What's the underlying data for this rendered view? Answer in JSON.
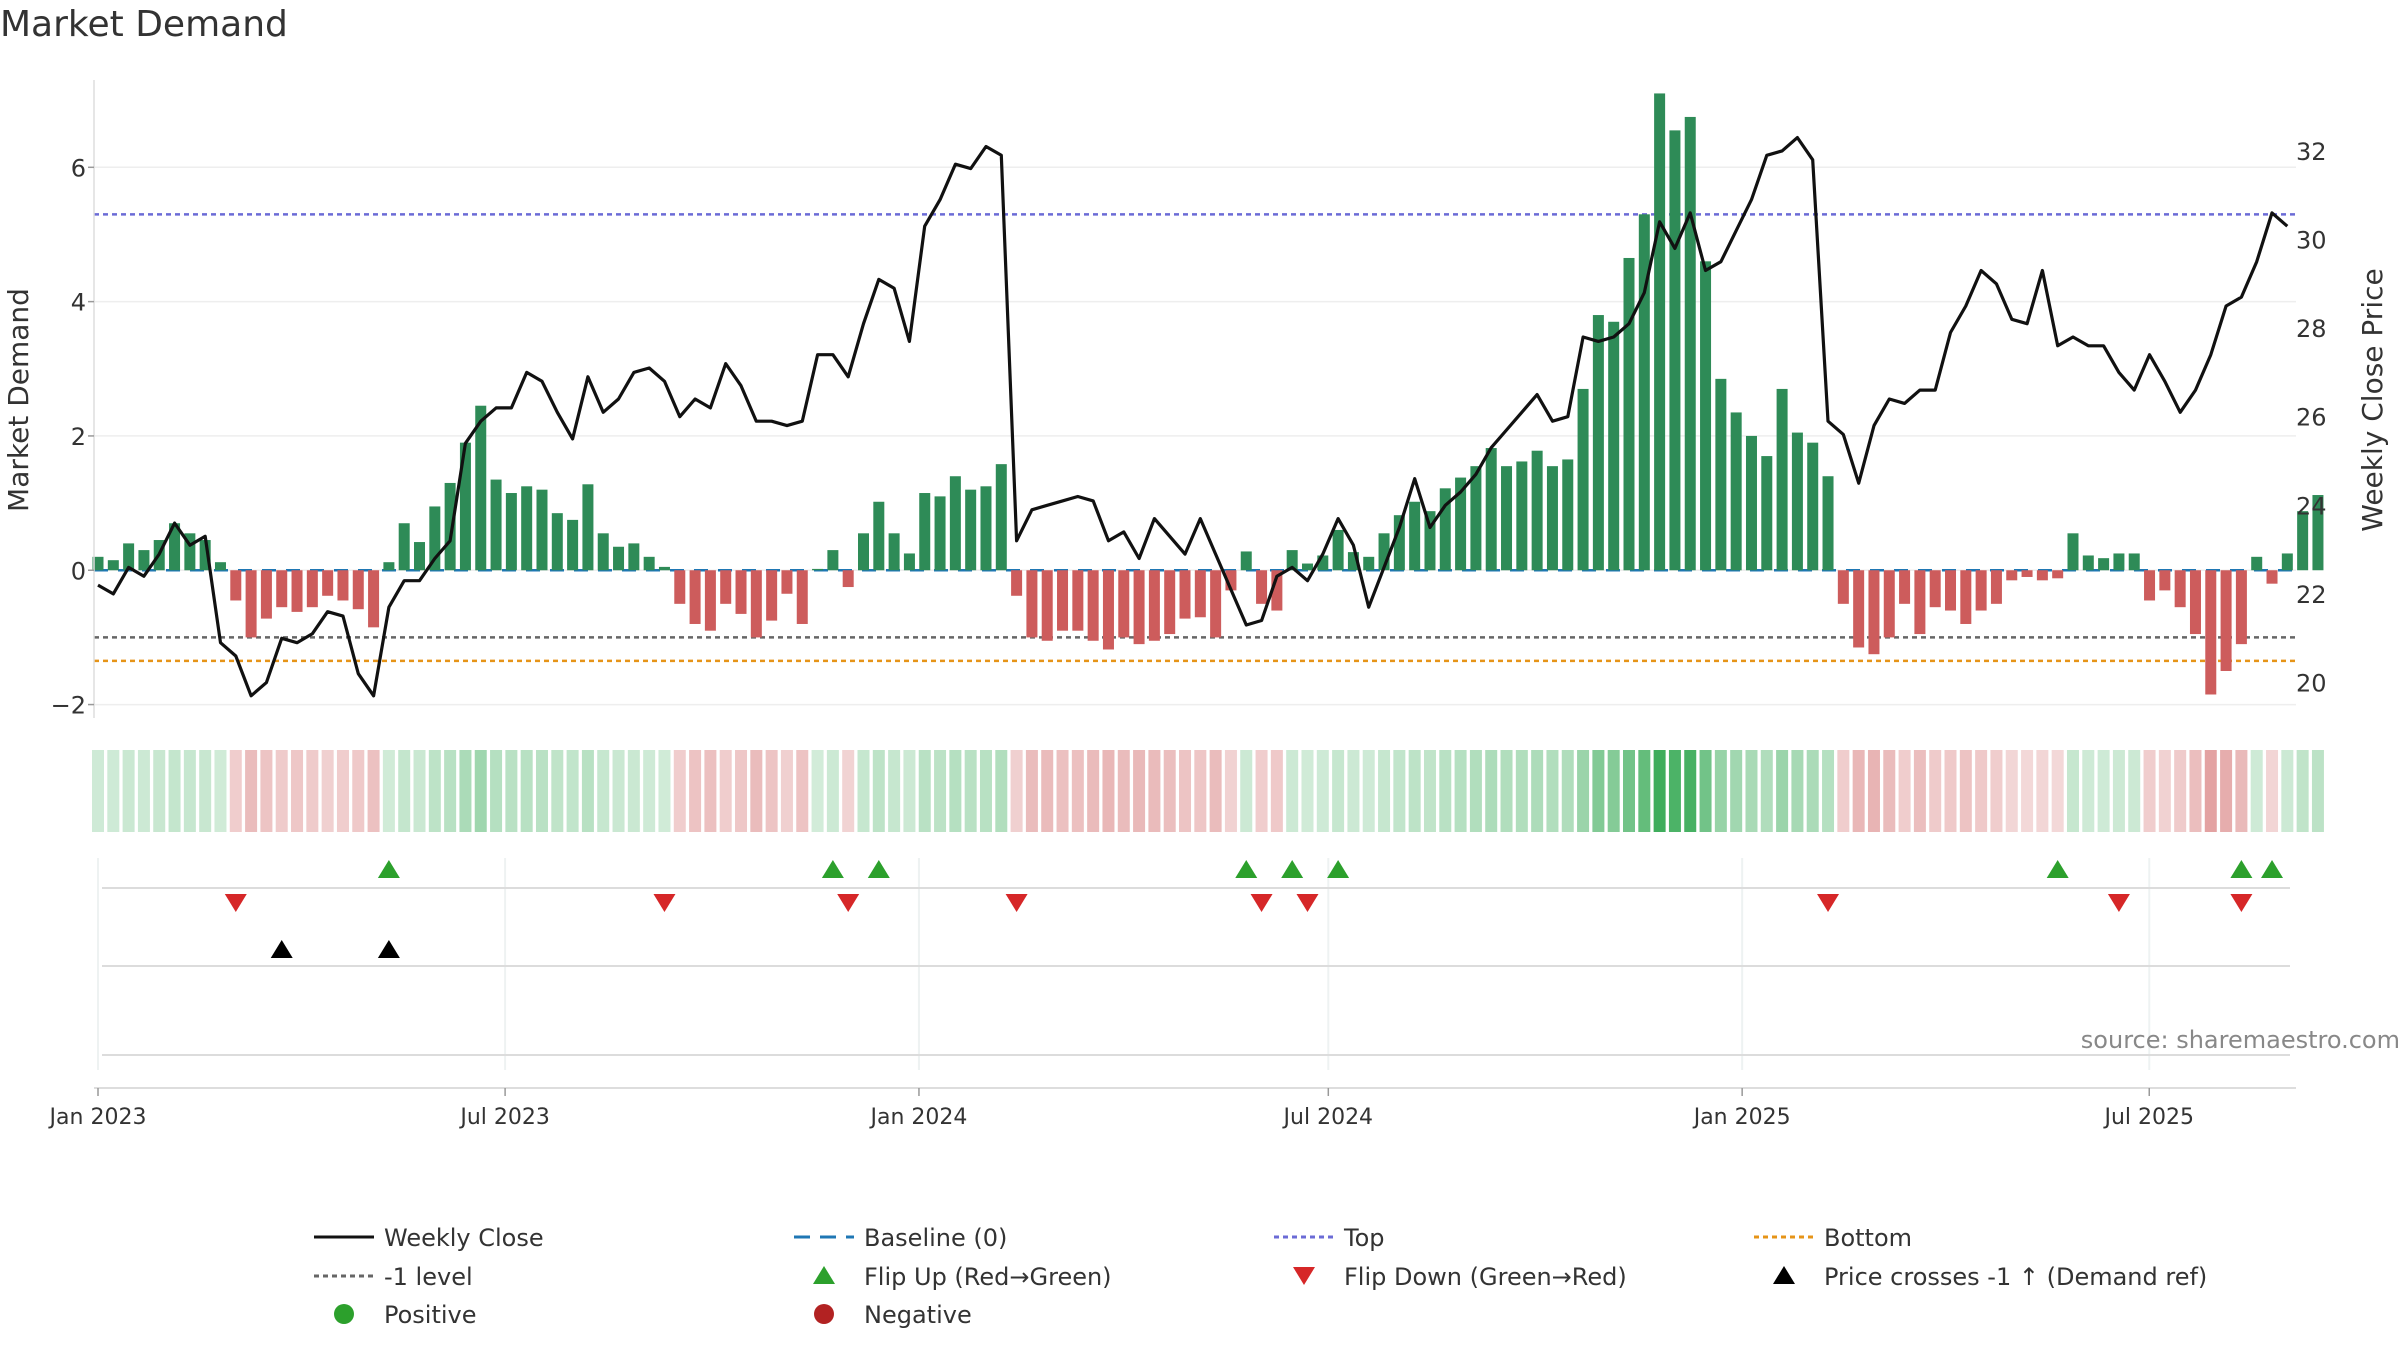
{
  "chart_data": {
    "type": "bar+line",
    "title": "Market Demand",
    "ylabel_left": "Market Demand",
    "ylabel_right": "Weekly Close Price",
    "source": "source: sharemaestro.com",
    "ylim_left": [
      -2.2,
      7.3
    ],
    "ylim_right": [
      19.2,
      33.6
    ],
    "yticks_left": [
      -2,
      0,
      2,
      4,
      6
    ],
    "yticks_left_labels": [
      "−2",
      "0",
      "2",
      "4",
      "6"
    ],
    "yticks_right": [
      20,
      22,
      24,
      26,
      28,
      30,
      32
    ],
    "date_start": "2023-01-01",
    "date_end": "2025-09-14",
    "xticks": [
      "2023-01-01",
      "2023-07-01",
      "2024-01-01",
      "2024-07-01",
      "2025-01-01",
      "2025-07-01"
    ],
    "xtick_labels": [
      "Jan 2023",
      "Jul 2023",
      "Jan 2024",
      "Jul 2024",
      "Jan 2025",
      "Jul 2025"
    ],
    "reference_lines": {
      "top": 5.3,
      "bottom": -1.35,
      "minus_one_level": -1.0,
      "baseline": 0
    },
    "demand": [
      0.2,
      0.15,
      0.4,
      0.3,
      0.45,
      0.7,
      0.55,
      0.45,
      0.12,
      -0.45,
      -1.0,
      -0.72,
      -0.55,
      -0.62,
      -0.55,
      -0.38,
      -0.45,
      -0.58,
      -0.85,
      0.12,
      0.7,
      0.42,
      0.95,
      1.3,
      1.9,
      2.45,
      1.35,
      1.15,
      1.25,
      1.2,
      0.85,
      0.75,
      1.28,
      0.55,
      0.35,
      0.4,
      0.2,
      0.05,
      -0.5,
      -0.8,
      -0.9,
      -0.5,
      -0.65,
      -1.0,
      -0.75,
      -0.35,
      -0.8,
      0.02,
      0.3,
      -0.25,
      0.55,
      1.02,
      0.55,
      0.25,
      1.15,
      1.1,
      1.4,
      1.2,
      1.25,
      1.58,
      -0.38,
      -1.0,
      -1.05,
      -0.9,
      -0.9,
      -1.05,
      -1.18,
      -1.0,
      -1.1,
      -1.05,
      -0.95,
      -0.72,
      -0.7,
      -1.0,
      -0.3,
      0.28,
      -0.5,
      -0.6,
      0.3,
      0.1,
      0.22,
      0.6,
      0.27,
      0.2,
      0.55,
      0.82,
      1.02,
      0.88,
      1.22,
      1.38,
      1.55,
      1.82,
      1.55,
      1.62,
      1.78,
      1.55,
      1.65,
      2.7,
      3.8,
      3.7,
      4.65,
      5.3,
      7.1,
      6.55,
      6.75,
      4.6,
      2.85,
      2.35,
      2.0,
      1.7,
      2.7,
      2.05,
      1.9,
      1.4,
      -0.5,
      -1.15,
      -1.25,
      -1.0,
      -0.5,
      -0.95,
      -0.55,
      -0.6,
      -0.8,
      -0.6,
      -0.5,
      -0.15,
      -0.1,
      -0.15,
      -0.12,
      0.55,
      0.22,
      0.18,
      0.25,
      0.25,
      -0.45,
      -0.3,
      -0.55,
      -0.95,
      -1.85,
      -1.5,
      -1.1,
      0.2,
      -0.2,
      0.25,
      0.88,
      1.12
    ],
    "close": [
      22.2,
      22.0,
      22.6,
      22.4,
      22.9,
      23.6,
      23.1,
      23.3,
      20.9,
      20.6,
      19.7,
      20.0,
      21.0,
      20.9,
      21.1,
      21.6,
      21.5,
      20.2,
      19.7,
      21.7,
      22.3,
      22.3,
      22.8,
      23.2,
      25.4,
      25.9,
      26.2,
      26.2,
      27.0,
      26.8,
      26.1,
      25.5,
      26.9,
      26.1,
      26.4,
      27.0,
      27.1,
      26.8,
      26.0,
      26.4,
      26.2,
      27.2,
      26.7,
      25.9,
      25.9,
      25.8,
      25.9,
      27.4,
      27.4,
      26.9,
      28.1,
      29.1,
      28.9,
      27.7,
      30.3,
      30.9,
      31.7,
      31.6,
      32.1,
      31.9,
      23.2,
      23.9,
      24.0,
      24.1,
      24.2,
      24.1,
      23.2,
      23.4,
      22.8,
      23.7,
      23.3,
      22.9,
      23.7,
      22.9,
      22.1,
      21.3,
      21.4,
      22.4,
      22.6,
      22.3,
      22.9,
      23.7,
      23.1,
      21.7,
      22.6,
      23.5,
      24.6,
      23.5,
      24.0,
      24.3,
      24.7,
      25.3,
      25.7,
      26.1,
      26.5,
      25.9,
      26.0,
      27.8,
      27.7,
      27.8,
      28.1,
      28.8,
      30.4,
      29.8,
      30.6,
      29.3,
      29.5,
      30.2,
      30.9,
      31.9,
      32.0,
      32.3,
      31.8,
      25.9,
      25.6,
      24.5,
      25.8,
      26.4,
      26.3,
      26.6,
      26.6,
      27.9,
      28.5,
      29.3,
      29.0,
      28.2,
      28.1,
      29.3,
      27.6,
      27.8,
      27.6,
      27.6,
      27.0,
      26.6,
      27.4,
      26.8,
      26.1,
      26.6,
      27.4,
      28.5,
      28.7,
      29.5,
      30.6,
      30.3
    ],
    "flip_up_weeks": [
      19,
      48,
      51,
      75,
      78,
      81,
      128,
      140,
      142
    ],
    "flip_down_weeks": [
      9,
      37,
      49,
      60,
      76,
      79,
      113,
      132,
      140
    ],
    "price_cross_weeks": [
      12,
      19
    ],
    "legend": [
      {
        "label": "Weekly Close",
        "marker": "line-solid",
        "color": "#111111"
      },
      {
        "label": "Baseline (0)",
        "marker": "line-dash",
        "color": "#1f77b4"
      },
      {
        "label": "Top",
        "marker": "line-dot",
        "color": "#6b6bd6"
      },
      {
        "label": "Bottom",
        "marker": "line-dot",
        "color": "#e69418"
      },
      {
        "label": "-1 level",
        "marker": "line-dot",
        "color": "#666666"
      },
      {
        "label": "Flip Up (Red→Green)",
        "marker": "tri-up",
        "color": "#2ca02c"
      },
      {
        "label": "Flip Down (Green→Red)",
        "marker": "tri-down",
        "color": "#d62728"
      },
      {
        "label": "Price crosses -1 ↑ (Demand ref)",
        "marker": "tri-up",
        "color": "#000000"
      },
      {
        "label": "Positive",
        "marker": "dot",
        "color": "#2ca02c"
      },
      {
        "label": "Negative",
        "marker": "dot",
        "color": "#b22222"
      }
    ],
    "colors": {
      "positive_bar": "#2e8b57",
      "negative_bar": "#cd5c5c",
      "price_line": "#111111",
      "flip_up": "#2ca02c",
      "flip_down": "#d62728",
      "cross_marker": "#000000"
    }
  }
}
